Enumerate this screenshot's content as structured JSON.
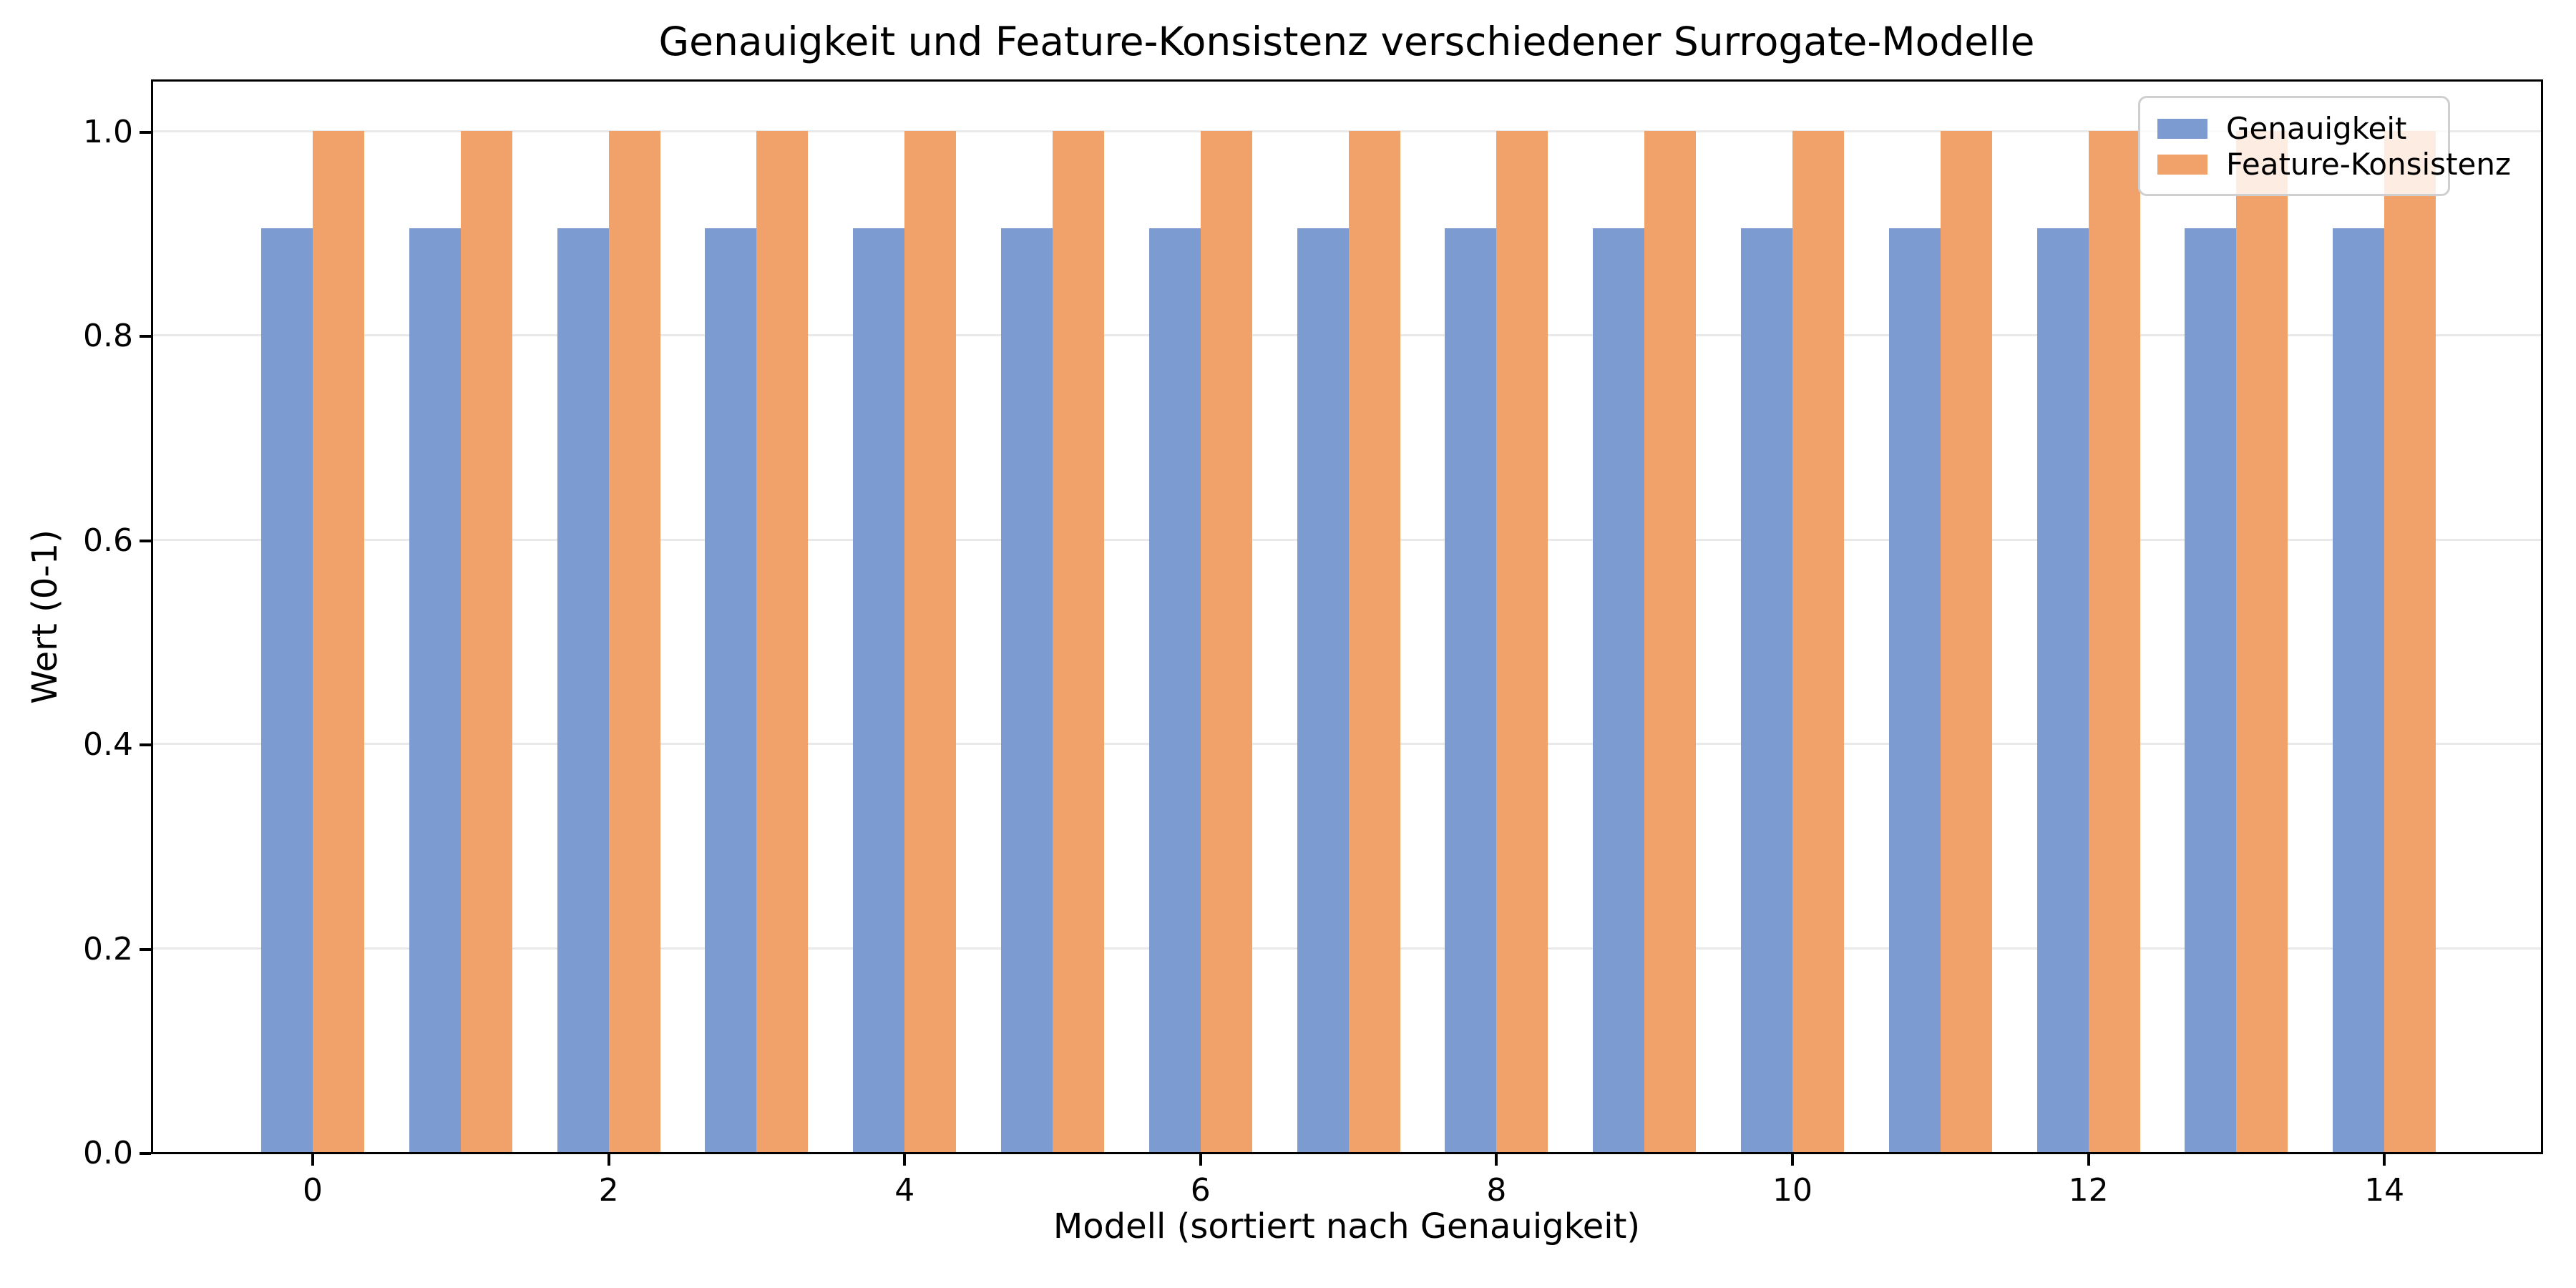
{
  "chart_data": {
    "type": "bar",
    "title": "Genauigkeit und Feature-Konsistenz verschiedener Surrogate-Modelle",
    "xlabel": "Modell (sortiert nach Genauigkeit)",
    "ylabel": "Wert (0-1)",
    "categories": [
      0,
      1,
      2,
      3,
      4,
      5,
      6,
      7,
      8,
      9,
      10,
      11,
      12,
      13,
      14
    ],
    "series": [
      {
        "name": "Genauigkeit",
        "color": "#7c9bd1",
        "values": [
          0.905,
          0.905,
          0.905,
          0.905,
          0.905,
          0.905,
          0.905,
          0.905,
          0.905,
          0.905,
          0.905,
          0.905,
          0.905,
          0.905,
          0.905
        ]
      },
      {
        "name": "Feature-Konsistenz",
        "color": "#f1a26b",
        "values": [
          1.0,
          1.0,
          1.0,
          1.0,
          1.0,
          1.0,
          1.0,
          1.0,
          1.0,
          1.0,
          1.0,
          1.0,
          1.0,
          1.0,
          1.0
        ]
      }
    ],
    "bar_width": 0.35,
    "ylim": [
      0,
      1.05
    ],
    "xlim": [
      -1.09,
      15.07
    ],
    "yticks": [
      "0.0",
      "0.2",
      "0.4",
      "0.6",
      "0.8",
      "1.0"
    ],
    "xticks": [
      "0",
      "2",
      "4",
      "6",
      "8",
      "10",
      "12",
      "14"
    ],
    "grid": "y",
    "grid_color": "#e9e9e9",
    "legend_position": "upper right"
  }
}
